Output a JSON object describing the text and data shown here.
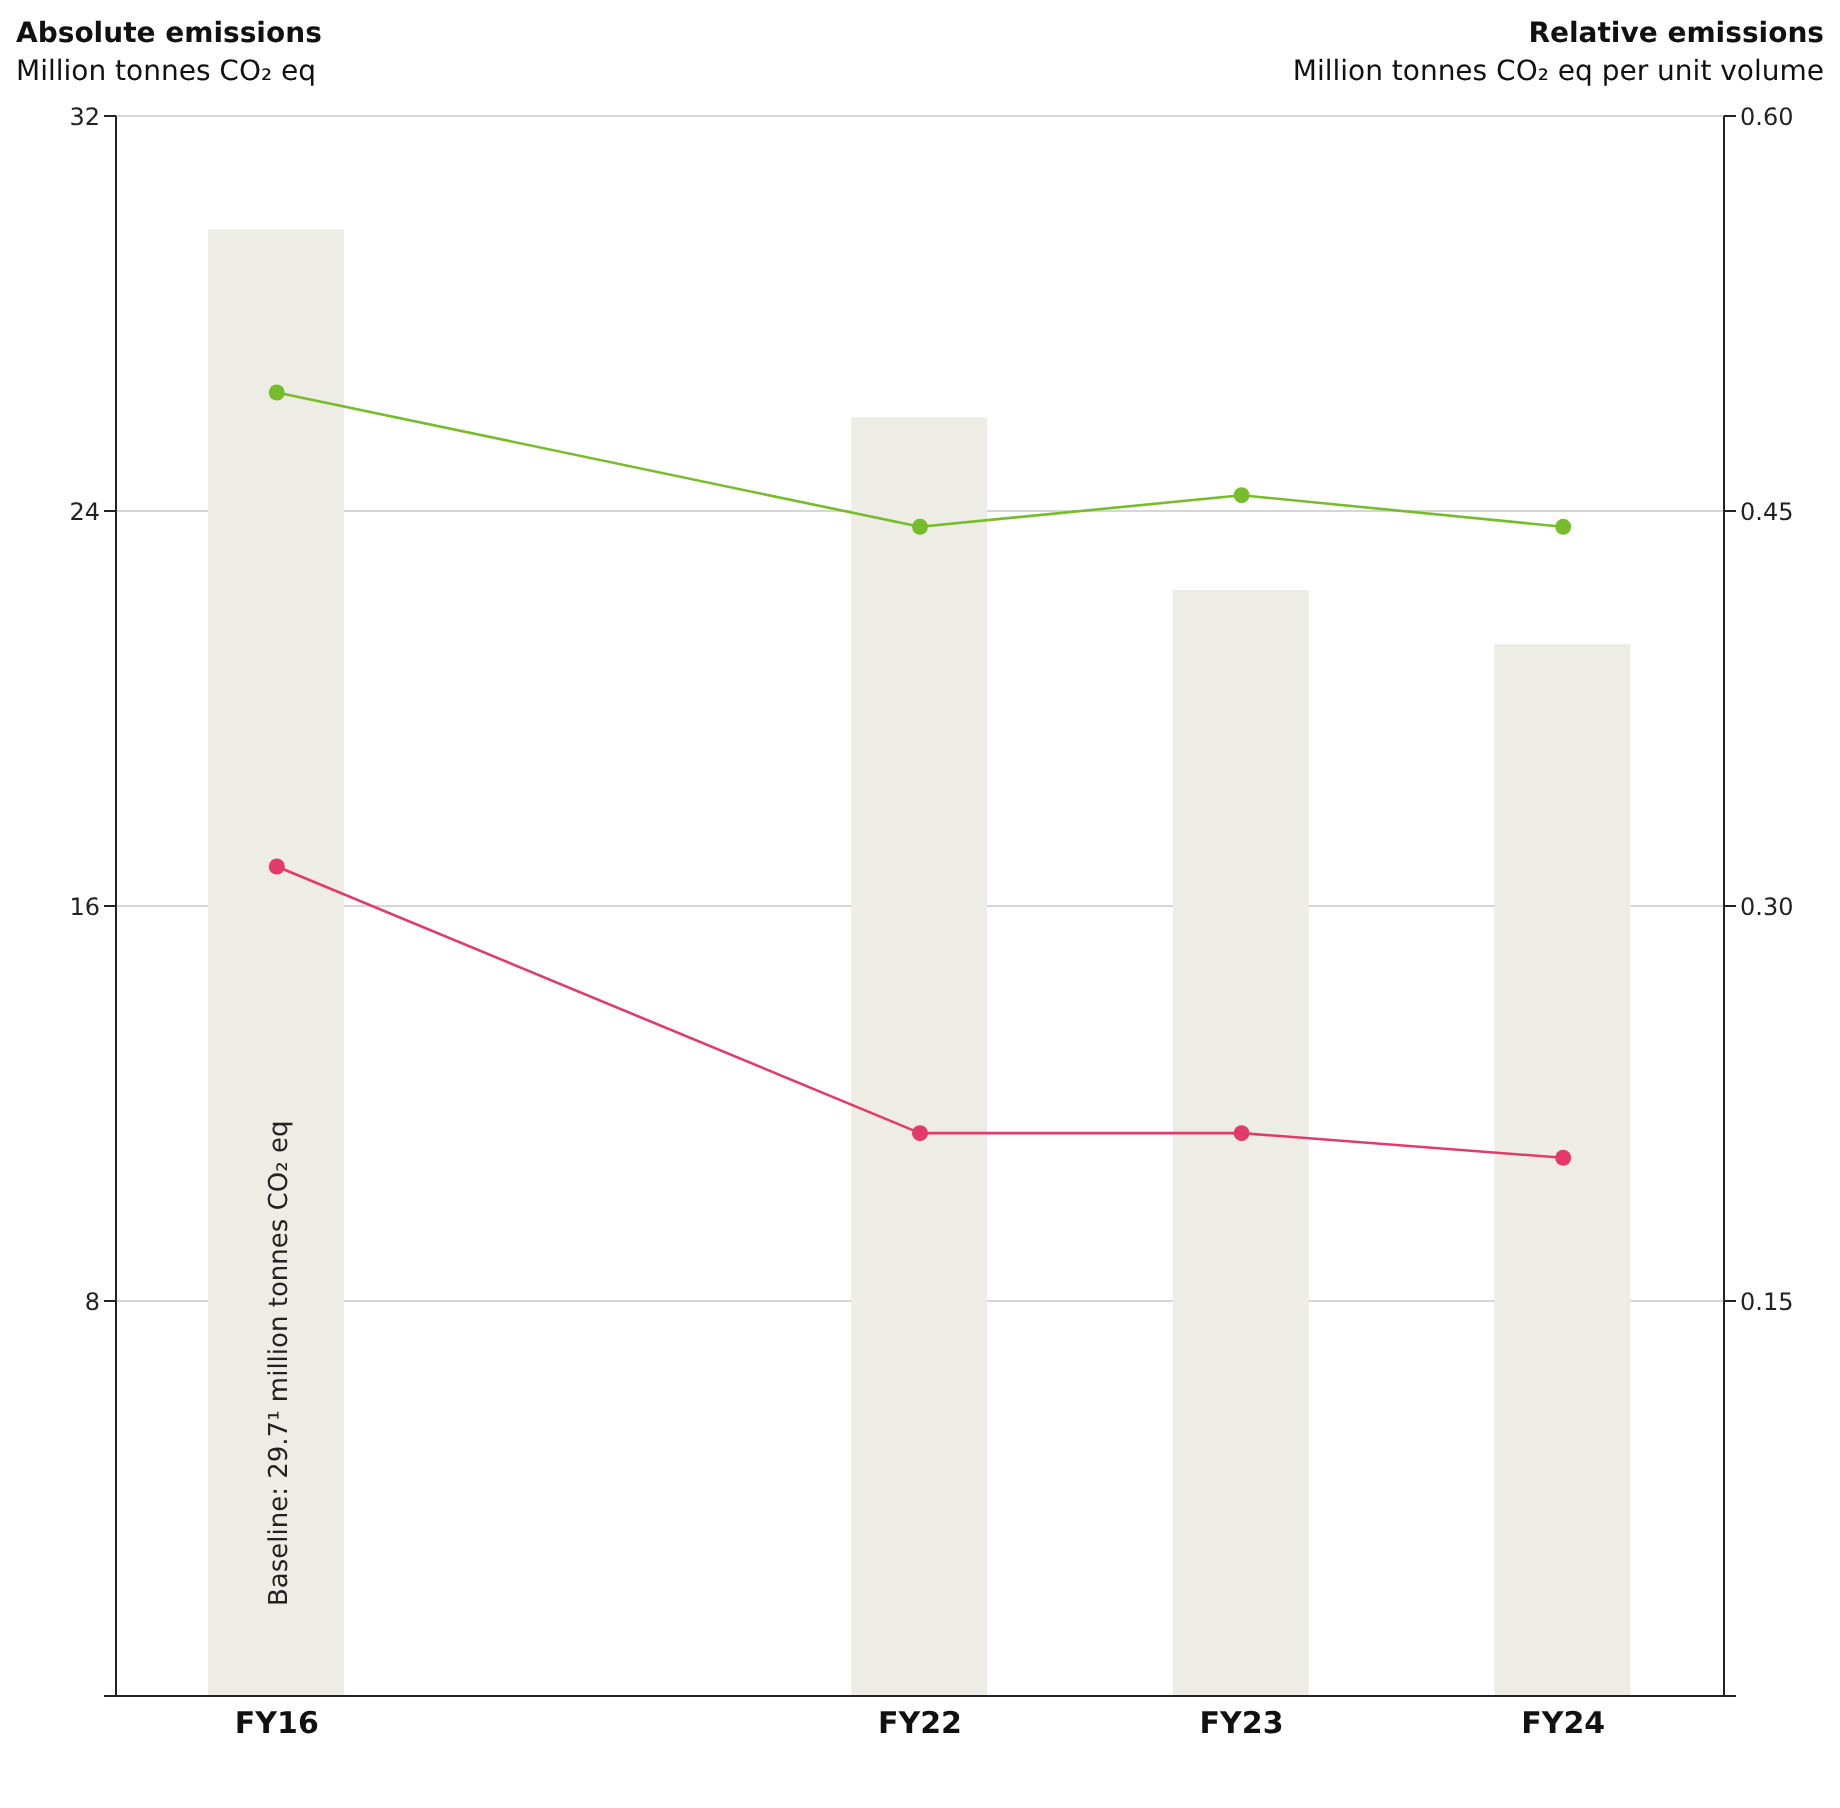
{
  "chart_data": {
    "type": "bar",
    "ylabel": "Absolute emissions",
    "y2label": "Relative emissions",
    "categories": [
      "FY16",
      null,
      "FY22",
      "FY23",
      "FY24"
    ],
    "series": [
      {
        "color": "#edece5",
        "values": [
          29.7,
          null,
          25.9,
          22.4,
          21.3
        ]
      },
      {
        "type": "line",
        "axis": "y2",
        "color": "#76bc2b",
        "values": [
          0.495,
          null,
          0.444,
          0.456,
          0.444
        ]
      },
      {
        "type": "line",
        "color": "#e23a6a",
        "values": [
          16.8,
          null,
          11.4,
          11.4,
          10.9
        ]
      }
    ],
    "ylim": [
      0,
      32
    ],
    "yticks": [
      {
        "value": 0,
        "label": null
      },
      8,
      16,
      24,
      32
    ],
    "y2lim": [
      0,
      0.6
    ],
    "y2ticks": [
      {
        "value": 0,
        "label": null
      },
      {
        "value": 0.15,
        "label": "0.15"
      },
      {
        "value": 0.3,
        "label": "0.30"
      },
      {
        "value": 0.45,
        "label": "0.45"
      },
      {
        "value": 0.6,
        "label": "0.60"
      }
    ],
    "grid": "y",
    "marker": "circle",
    "annotations": [
      "Million tonnes CO₂ eq",
      "Million tonnes CO₂ eq per unit volume",
      "Baseline: 29.7¹ million tonnes CO₂ eq"
    ]
  }
}
